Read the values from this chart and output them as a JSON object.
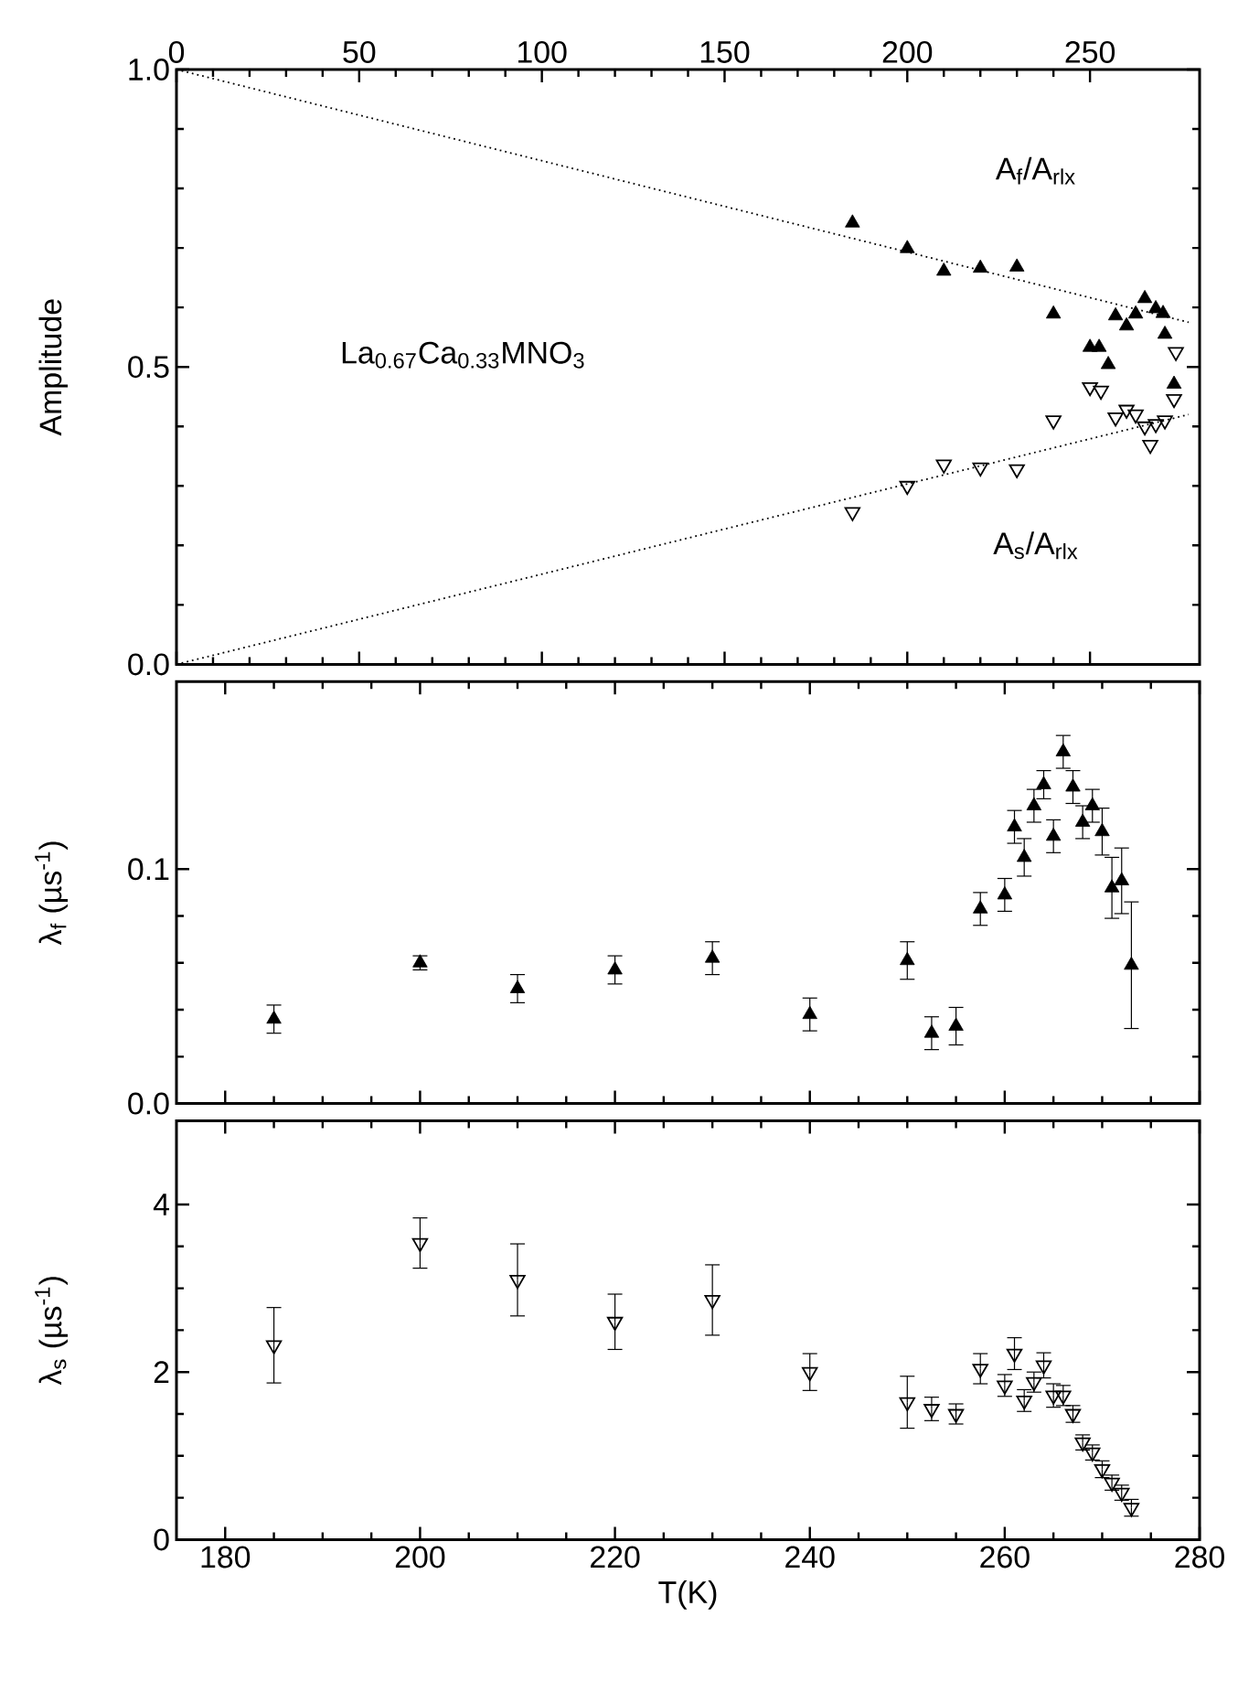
{
  "chart_data": [
    {
      "type": "scatter",
      "ylabel": "Amplitude",
      "xlim": [
        0,
        280
      ],
      "xticks": [
        0,
        50,
        100,
        150,
        200,
        250
      ],
      "ylim": [
        0,
        1
      ],
      "yticks": [
        {
          "value": 0,
          "label": "0.0"
        },
        {
          "value": 0.5,
          "label": "0.5"
        },
        {
          "value": 1,
          "label": "1.0"
        }
      ],
      "annotations": [
        "La$_{0.67}$Ca$_{0.33}$MNO$_{3}$"
      ],
      "series": [
        {
          "name": "A$_{f}$/A$_{rlx}$",
          "color": "#000000",
          "marker": "triangle",
          "x": [
            185,
            200,
            210,
            220,
            230,
            240,
            250,
            252.5,
            255,
            257,
            260,
            262.5,
            265,
            268,
            270,
            270.5,
            273
          ],
          "values": [
            0.742,
            0.699,
            0.661,
            0.666,
            0.668,
            0.589,
            0.533,
            0.533,
            0.504,
            0.586,
            0.569,
            0.589,
            0.615,
            0.598,
            0.59,
            0.555,
            0.471
          ]
        },
        {
          "name": "A$_{s}$/A$_{rlx}$",
          "color": "#000000",
          "marker": "triangle_down_open",
          "x": [
            185,
            200,
            210,
            220,
            230,
            240,
            250,
            253,
            257,
            260,
            262.5,
            265,
            266.5,
            268,
            270.5,
            273,
            273.5
          ],
          "values": [
            0.256,
            0.3,
            0.336,
            0.331,
            0.328,
            0.41,
            0.466,
            0.46,
            0.415,
            0.428,
            0.42,
            0.4,
            0.369,
            0.404,
            0.41,
            0.446,
            0.525
          ]
        },
        {
          "type": "line",
          "color": "#000000",
          "marker": "none",
          "line_style": "dotted",
          "x": [
            0,
            277
          ],
          "values": [
            1.0,
            0.575
          ]
        },
        {
          "type": "line",
          "color": "#000000",
          "marker": "none",
          "line_style": "dotted",
          "x": [
            0,
            277
          ],
          "values": [
            0,
            0.42
          ]
        }
      ]
    },
    {
      "type": "scatter",
      "ylabel": "λ$_{f}$ (µs$^{-1}$)",
      "xlim": [
        175,
        280
      ],
      "xticks": [
        180,
        200,
        220,
        240,
        260,
        280
      ],
      "tick_labels": "y",
      "ylim": [
        0,
        0.18
      ],
      "yticks": [
        {
          "value": 0,
          "label": "0.0"
        },
        {
          "value": 0.1,
          "label": "0.1"
        }
      ],
      "color": "#000000",
      "marker": "triangle",
      "x": [
        185,
        200,
        210,
        220,
        230,
        240,
        250,
        252.5,
        255,
        257.5,
        260,
        261,
        262,
        263,
        264,
        265,
        266,
        267,
        268,
        269,
        270,
        271,
        272,
        273
      ],
      "values": [
        0.036,
        0.06,
        0.049,
        0.057,
        0.062,
        0.038,
        0.061,
        0.03,
        0.033,
        0.083,
        0.089,
        0.118,
        0.105,
        0.127,
        0.136,
        0.114,
        0.15,
        0.135,
        0.12,
        0.127,
        0.116,
        0.092,
        0.095,
        0.059
      ],
      "errors": [
        0.006,
        0.003,
        0.006,
        0.006,
        0.007,
        0.007,
        0.008,
        0.007,
        0.008,
        0.007,
        0.007,
        0.007,
        0.008,
        0.007,
        0.006,
        0.007,
        0.007,
        0.007,
        0.007,
        0.007,
        0.01,
        0.013,
        0.014,
        0.027
      ]
    },
    {
      "type": "scatter",
      "ylabel": "λ$_{s}$ (µs$^{-1}$)",
      "xlabel": "T(K)",
      "xlim": [
        175,
        280
      ],
      "xticks": [
        180,
        200,
        220,
        240,
        260,
        280
      ],
      "ylim": [
        0,
        5
      ],
      "yticks": [
        0,
        2,
        4
      ],
      "color": "#000000",
      "marker": "triangle_down_open",
      "x": [
        185,
        200,
        210,
        220,
        230,
        240,
        250,
        252.5,
        255,
        257.5,
        260,
        261,
        262,
        263,
        264,
        265,
        266,
        267,
        268,
        269,
        270,
        271,
        272,
        273
      ],
      "values": [
        2.32,
        3.54,
        3.1,
        2.6,
        2.86,
        2.0,
        1.64,
        1.56,
        1.5,
        2.04,
        1.84,
        2.22,
        1.66,
        1.88,
        2.08,
        1.72,
        1.72,
        1.5,
        1.16,
        1.04,
        0.84,
        0.68,
        0.56,
        0.38
      ],
      "errors": [
        0.45,
        0.3,
        0.43,
        0.33,
        0.42,
        0.22,
        0.31,
        0.14,
        0.12,
        0.18,
        0.13,
        0.19,
        0.13,
        0.12,
        0.15,
        0.14,
        0.12,
        0.1,
        0.09,
        0.09,
        0.1,
        0.09,
        0.09,
        0.1
      ]
    }
  ]
}
